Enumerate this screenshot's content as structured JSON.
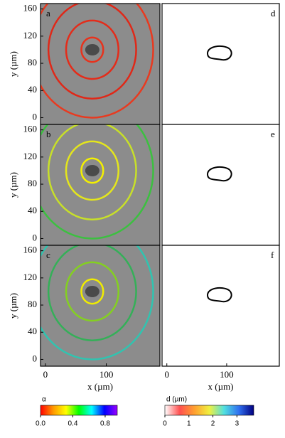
{
  "chart_data": [
    {
      "type": "image",
      "label": "a",
      "xlim": [
        -8,
        188
      ],
      "ylim": [
        -10,
        168
      ],
      "yticks": [
        0,
        40,
        80,
        120,
        160
      ],
      "ylabel": "y (µm)",
      "ring_center": [
        77,
        100
      ],
      "ring_radii": [
        18,
        43,
        72,
        100
      ],
      "ring_colors": [
        "#e8321c",
        "#e42c1a",
        "#e02818",
        "#e83a20"
      ]
    },
    {
      "type": "image",
      "label": "b",
      "xlim": [
        -8,
        188
      ],
      "ylim": [
        -10,
        168
      ],
      "yticks": [
        0,
        40,
        80,
        120,
        160
      ],
      "ylabel": "y (µm)",
      "ring_center": [
        77,
        100
      ],
      "ring_radii": [
        18,
        43,
        72,
        100
      ],
      "ring_colors": [
        "#f4f000",
        "#e4e61c",
        "#c8e028",
        "#3cc040"
      ]
    },
    {
      "type": "image",
      "label": "c",
      "xlim": [
        -8,
        188
      ],
      "ylim": [
        -10,
        168
      ],
      "yticks": [
        0,
        40,
        80,
        120,
        160
      ],
      "ylabel": "y (µm)",
      "xticks": [
        0,
        100
      ],
      "xlabel": "x (µm)",
      "ring_center": [
        77,
        100
      ],
      "ring_radii": [
        18,
        43,
        72,
        100
      ],
      "ring_colors": [
        "#f0ec00",
        "#84d020",
        "#34b058",
        "#30c4b0"
      ]
    },
    {
      "type": "map",
      "label": "d",
      "xlim": [
        -8,
        188
      ],
      "ylim": [
        -10,
        168
      ]
    },
    {
      "type": "map",
      "label": "e",
      "xlim": [
        -8,
        188
      ],
      "ylim": [
        -10,
        168
      ]
    },
    {
      "type": "map",
      "label": "f",
      "xlim": [
        -8,
        188
      ],
      "ylim": [
        -10,
        168
      ],
      "xticks": [
        0,
        100
      ],
      "xlabel": "x (µm)"
    },
    {
      "type": "colorbar",
      "title": "α",
      "lim": [
        0,
        0.95
      ],
      "ticks": [
        {
          "value": 0,
          "label": "0.0"
        },
        {
          "value": 0.4,
          "label": "0.4"
        },
        {
          "value": 0.8,
          "label": "0.8"
        }
      ],
      "colors": [
        "#ff0000",
        "#ff9900",
        "#ffff00",
        "#00ff00",
        "#00ffff",
        "#0000ff",
        "#9900ff"
      ]
    },
    {
      "type": "colorbar",
      "title": "d (µm)",
      "lim": [
        0,
        3.7
      ],
      "ticks": [
        0,
        1,
        2,
        3
      ],
      "colors": [
        "#ffffff",
        "#ff5050",
        "#ffa030",
        "#f0f040",
        "#50e0e0",
        "#3070f0",
        "#000080"
      ]
    }
  ]
}
